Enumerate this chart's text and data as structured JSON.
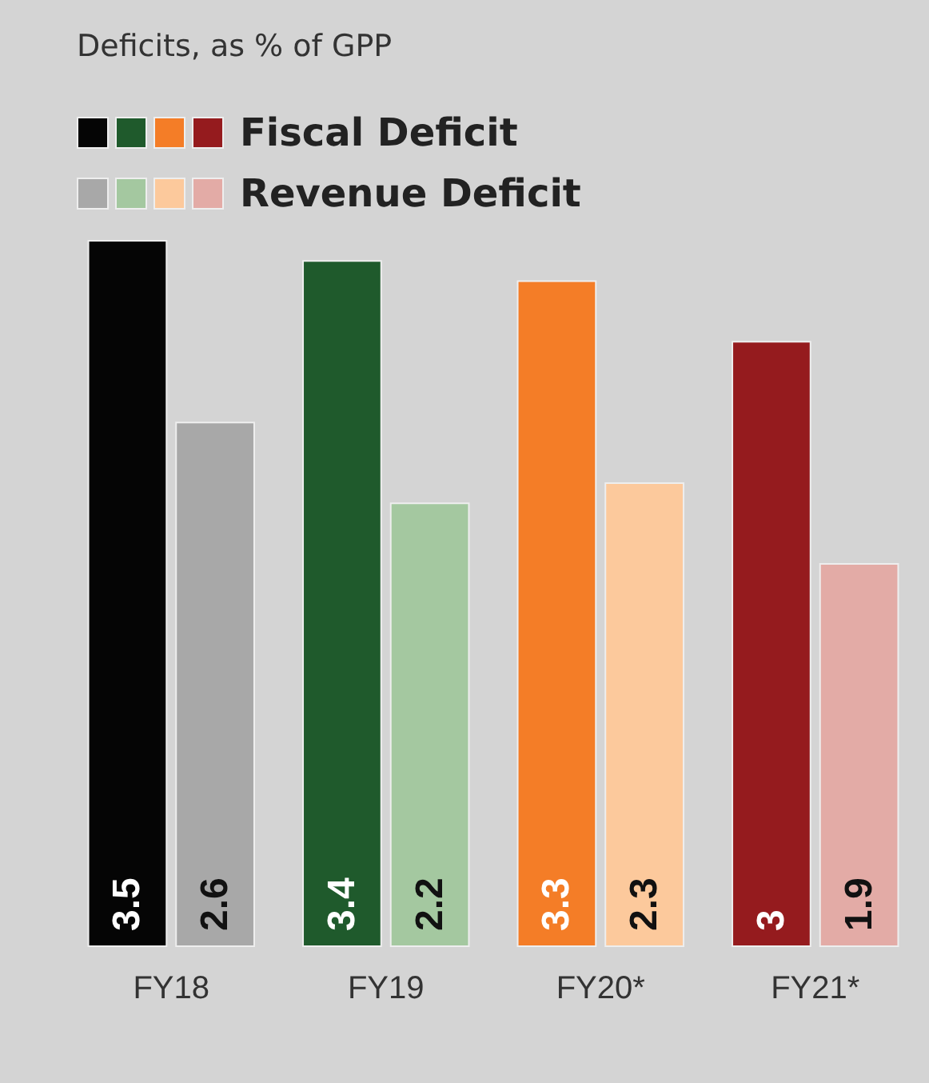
{
  "chart_data": {
    "type": "bar",
    "subtitle": "Deficits, as % of GPP",
    "categories": [
      "FY18",
      "FY19",
      "FY20*",
      "FY21*"
    ],
    "series": [
      {
        "name": "Fiscal Deficit",
        "colors": [
          "#050505",
          "#1f5a2c",
          "#f47d27",
          "#951b1e"
        ],
        "values": [
          3.5,
          3.4,
          3.3,
          3
        ]
      },
      {
        "name": "Revenue Deficit",
        "colors": [
          "#a8a8a8",
          "#a4c8a0",
          "#fcc99c",
          "#e3aba6"
        ],
        "values": [
          2.6,
          2.2,
          2.3,
          1.9
        ]
      }
    ],
    "data_labels": true,
    "legend": "top left"
  }
}
